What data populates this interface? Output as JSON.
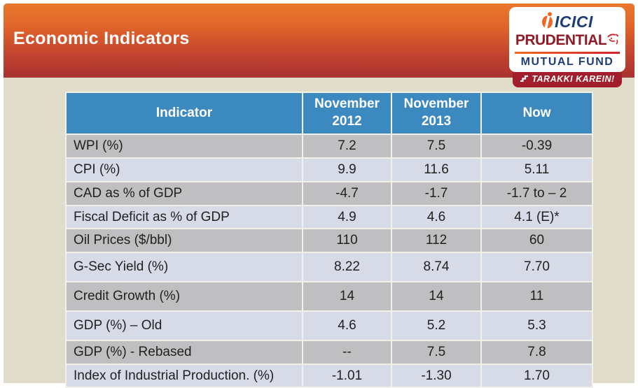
{
  "banner": {
    "title": "Economic Indicators"
  },
  "logo": {
    "brand_line1": "ICICI",
    "brand_line2": "PRUDENTIAL",
    "brand_line3": "MUTUAL FUND",
    "tagline": "TARAKKI KAREIN!"
  },
  "colors": {
    "banner_gradient_top": "#e9772c",
    "banner_gradient_bottom": "#a93230",
    "slide_background": "#dfddc9",
    "table_header_blue": "#3c89c0",
    "row_gray": "#bfbfc1",
    "row_light_blue": "#d7dbe7",
    "logo_navy": "#1d3c78",
    "logo_maroon": "#8f1b26",
    "logo_orange": "#ef6724",
    "tagline_bar_red": "#a31e2c"
  },
  "table": {
    "columns": [
      "Indicator",
      "November 2012",
      "November 2013",
      "Now"
    ],
    "rows": [
      {
        "indicator": "WPI (%)",
        "values": [
          "7.2",
          "7.5",
          "-0.39"
        ]
      },
      {
        "indicator": "CPI (%)",
        "values": [
          "9.9",
          "11.6",
          "5.11"
        ]
      },
      {
        "indicator": "CAD as % of GDP",
        "values": [
          "-4.7",
          "-1.7",
          "-1.7 to – 2"
        ]
      },
      {
        "indicator": "Fiscal Deficit as % of GDP",
        "values": [
          "4.9",
          "4.6",
          "4.1 (E)*"
        ]
      },
      {
        "indicator": "Oil Prices ($/bbl)",
        "values": [
          "110",
          "112",
          "60"
        ]
      },
      {
        "indicator": "G-Sec Yield (%)",
        "values": [
          "8.22",
          "8.74",
          "7.70"
        ]
      },
      {
        "indicator": "Credit Growth (%)",
        "values": [
          "14",
          "14",
          "11"
        ]
      },
      {
        "indicator": "GDP (%) – Old",
        "values": [
          "4.6",
          "5.2",
          "5.3"
        ]
      },
      {
        "indicator": "GDP (%) - Rebased",
        "values": [
          "--",
          "7.5",
          "7.8"
        ]
      },
      {
        "indicator": "Index of Industrial Production. (%)",
        "values": [
          "-1.01",
          "-1.30",
          "1.70"
        ]
      }
    ]
  }
}
